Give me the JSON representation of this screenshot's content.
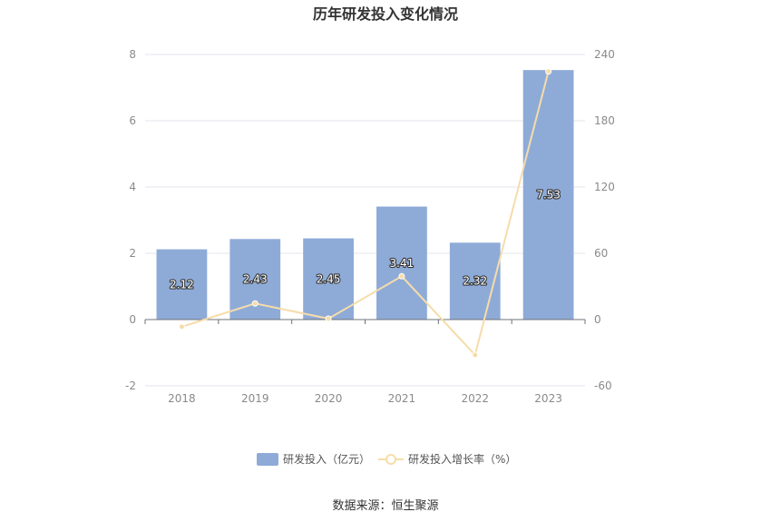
{
  "title": "历年研发投入变化情况",
  "source_note": "数据来源：恒生聚源",
  "colors": {
    "bar": "#8eabd8",
    "line": "#f6dcaa",
    "grid": "#e3e6ee",
    "axis": "#6e7079",
    "text": "#8a8a8a"
  },
  "chart_data": {
    "type": "bar",
    "categories": [
      "2018",
      "2019",
      "2020",
      "2021",
      "2022",
      "2023"
    ],
    "series": [
      {
        "name": "研发投入（亿元）",
        "type": "bar",
        "axis": "left",
        "values": [
          2.12,
          2.43,
          2.45,
          3.41,
          2.32,
          7.53
        ],
        "data_labels": [
          "2.12",
          "2.43",
          "2.45",
          "3.41",
          "2.32",
          "7.53"
        ]
      },
      {
        "name": "研发投入增长率（%）",
        "type": "line",
        "axis": "right",
        "values": [
          -6.5,
          14.6,
          0.8,
          39.2,
          -32.0,
          224.6
        ]
      }
    ],
    "y_left": {
      "min": -2,
      "max": 8,
      "ticks": [
        "-2",
        "0",
        "2",
        "4",
        "6",
        "8"
      ]
    },
    "y_right": {
      "min": -60,
      "max": 240,
      "ticks": [
        "-60",
        "0",
        "60",
        "120",
        "180",
        "240"
      ]
    },
    "grid": true,
    "legend": "bottom-center"
  }
}
